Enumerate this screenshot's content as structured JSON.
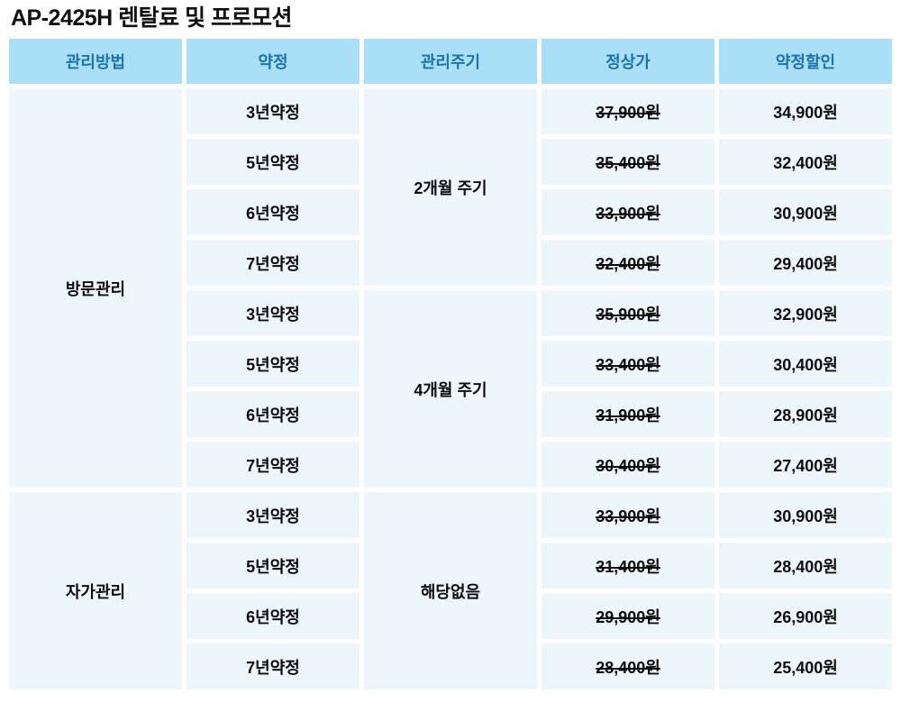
{
  "title": "AP-2425H 렌탈료 및 프로모션",
  "colors": {
    "header_bg": "#a9e0f7",
    "header_text": "#1e73ab",
    "cell_bg": "#edf6fb",
    "body_text": "#0d0d0d",
    "page_bg": "#ffffff"
  },
  "table": {
    "headers": [
      "관리방법",
      "약정",
      "관리주기",
      "정상가",
      "약정할인"
    ],
    "groups": [
      {
        "method": "방문관리",
        "cycles": [
          {
            "label": "2개월 주기",
            "rows": [
              {
                "contract": "3년약정",
                "regular": "37,900원",
                "discount": "34,900원"
              },
              {
                "contract": "5년약정",
                "regular": "35,400원",
                "discount": "32,400원"
              },
              {
                "contract": "6년약정",
                "regular": "33,900원",
                "discount": "30,900원"
              },
              {
                "contract": "7년약정",
                "regular": "32,400원",
                "discount": "29,400원"
              }
            ]
          },
          {
            "label": "4개월 주기",
            "rows": [
              {
                "contract": "3년약정",
                "regular": "35,900원",
                "discount": "32,900원"
              },
              {
                "contract": "5년약정",
                "regular": "33,400원",
                "discount": "30,400원"
              },
              {
                "contract": "6년약정",
                "regular": "31,900원",
                "discount": "28,900원"
              },
              {
                "contract": "7년약정",
                "regular": "30,400원",
                "discount": "27,400원"
              }
            ]
          }
        ]
      },
      {
        "method": "자가관리",
        "cycles": [
          {
            "label": "해당없음",
            "rows": [
              {
                "contract": "3년약정",
                "regular": "33,900원",
                "discount": "30,900원"
              },
              {
                "contract": "5년약정",
                "regular": "31,400원",
                "discount": "28,400원"
              },
              {
                "contract": "6년약정",
                "regular": "29,900원",
                "discount": "26,900원"
              },
              {
                "contract": "7년약정",
                "regular": "28,400원",
                "discount": "25,400원"
              }
            ]
          }
        ]
      }
    ]
  }
}
